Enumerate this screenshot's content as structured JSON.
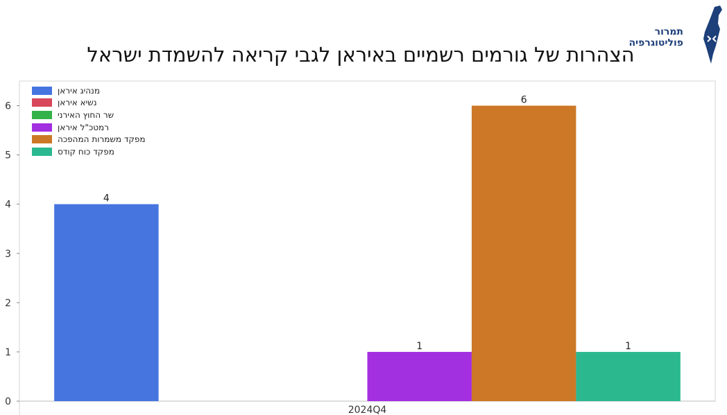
{
  "header": {
    "title": "הצהרות של גורמים רשמיים באיראן לגבי קריאה להשמדת ישראל",
    "logo_line1": "תמרור",
    "logo_line2": "פוליטוגרפיה",
    "logo_icon": "israel-map-icon"
  },
  "colors": {
    "logo": "#1d3f7a"
  },
  "chart_data": {
    "type": "bar",
    "categories": [
      "2024Q4"
    ],
    "series": [
      {
        "name": "מנהיג איראן",
        "values": [
          4
        ],
        "color": "#4675e0"
      },
      {
        "name": "נשיא איראן",
        "values": [
          0
        ],
        "color": "#d8475a"
      },
      {
        "name": "שר החוץ האירני",
        "values": [
          0
        ],
        "color": "#33b24a"
      },
      {
        "name": "רמטכ\"ל איראן",
        "values": [
          1
        ],
        "color": "#a22fe0"
      },
      {
        "name": "מפקד משמרות המהפכה",
        "values": [
          6
        ],
        "color": "#cc7826"
      },
      {
        "name": "מפקד כוח קודס",
        "values": [
          1
        ],
        "color": "#2bb88f"
      }
    ],
    "ylim": [
      0,
      6.5
    ],
    "yticks": [
      0,
      1,
      2,
      3,
      4,
      5,
      6
    ],
    "grid": false,
    "legend_position": "top-left"
  }
}
